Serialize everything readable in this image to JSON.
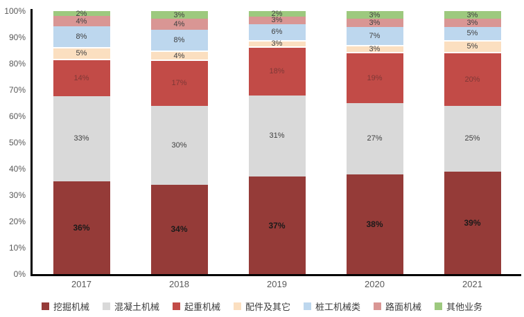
{
  "chart_data": {
    "type": "bar",
    "variant": "stacked-100-percent-column",
    "title": "",
    "xlabel": "",
    "ylabel": "",
    "categories": [
      "2017",
      "2018",
      "2019",
      "2020",
      "2021"
    ],
    "series": [
      {
        "name": "挖掘机械",
        "color": "#953B38",
        "label_color": "#1a1a1a",
        "label_bold": true,
        "white_border": false,
        "values": [
          36,
          34,
          37,
          38,
          39
        ]
      },
      {
        "name": "混凝土机械",
        "color": "#D9D9D9",
        "label_color": "#404040",
        "label_bold": false,
        "white_border": false,
        "values": [
          33,
          30,
          31,
          27,
          25
        ]
      },
      {
        "name": "起重机械",
        "color": "#C24B47",
        "label_color": "#7F3836",
        "label_bold": false,
        "white_border": false,
        "values": [
          14,
          17,
          18,
          19,
          20
        ]
      },
      {
        "name": "配件及其它",
        "color": "#FBDFC0",
        "label_color": "#404040",
        "label_bold": false,
        "white_border": true,
        "values": [
          5,
          4,
          3,
          3,
          5
        ]
      },
      {
        "name": "桩工机械类",
        "color": "#BDD7EE",
        "label_color": "#404040",
        "label_bold": false,
        "white_border": false,
        "values": [
          8,
          8,
          6,
          7,
          5
        ]
      },
      {
        "name": "路面机械",
        "color": "#D99694",
        "label_color": "#404040",
        "label_bold": false,
        "white_border": false,
        "values": [
          4,
          4,
          3,
          3,
          3
        ]
      },
      {
        "name": "其他业务",
        "color": "#9DC97E",
        "label_color": "#404040",
        "label_bold": false,
        "white_border": false,
        "values": [
          2,
          3,
          2,
          3,
          3
        ]
      }
    ],
    "data_label_suffix": "%",
    "y_ticks": [
      "0%",
      "10%",
      "20%",
      "30%",
      "40%",
      "50%",
      "60%",
      "70%",
      "80%",
      "90%",
      "100%"
    ],
    "ylim": [
      0,
      100
    ],
    "grid": false,
    "legend_position": "bottom",
    "axis_color": "#000000",
    "tick_text_color": "#595959"
  }
}
